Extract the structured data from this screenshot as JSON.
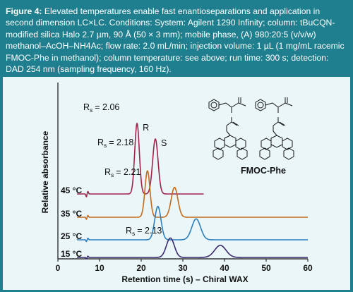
{
  "caption": {
    "figure_label": "Figure 4:",
    "text": " Elevated temperatures enable fast enantioseparations and application in second dimension LC×LC. Conditions: System: Agilent 1290 Infinity; column: tBuCQN-modified silica Halo 2.7 µm, 90 Å (50 × 3 mm); mobile phase, (A) 980:20:5 (v/v/w) methanol–AcOH–NH4Ac; flow rate: 2.0 mL/min; injection volume: 1 µL (1 mg/mL racemic FMOC-Phe in methanol); column temperature: see above; run time: 300 s; detection: DAD 254 nm (sampling frequency, 160 Hz)."
  },
  "molecule_label": "FMOC-Phe",
  "chart_data": {
    "type": "line",
    "xlabel": "Retention time (s) – Chiral WAX",
    "ylabel": "Relative absorbance",
    "xlim": [
      0,
      60
    ],
    "xticks": [
      0,
      10,
      20,
      30,
      40,
      50,
      60
    ],
    "grid": false,
    "series": [
      {
        "name": "45 °C",
        "color": "#a3224a",
        "x_end": 35,
        "rs_label": "R",
        "rs_sub": "s",
        "rs_value": "= 2.06",
        "peaks": [
          {
            "t": 19.0,
            "h": 1.0,
            "w": 0.55,
            "label": "R"
          },
          {
            "t": 23.4,
            "h": 0.78,
            "w": 0.65,
            "label": "S"
          }
        ]
      },
      {
        "name": "35 °C",
        "color": "#c26a1e",
        "x_end": 60,
        "rs_label": "R",
        "rs_sub": "s",
        "rs_value": "= 2.18",
        "peaks": [
          {
            "t": 21.5,
            "h": 0.9,
            "w": 0.6
          },
          {
            "t": 28.0,
            "h": 0.58,
            "w": 0.8
          }
        ]
      },
      {
        "name": "25 °C",
        "color": "#2c7fbe",
        "x_end": 60,
        "rs_label": "R",
        "rs_sub": "s",
        "rs_value": "= 2.21",
        "peaks": [
          {
            "t": 24.0,
            "h": 0.75,
            "w": 0.75
          },
          {
            "t": 33.2,
            "h": 0.47,
            "w": 1.05
          }
        ]
      },
      {
        "name": "15 °C",
        "color": "#3a2a6e",
        "x_end": 60,
        "rs_label": "R",
        "rs_sub": "s",
        "rs_value": "= 2.13",
        "peaks": [
          {
            "t": 27.0,
            "h": 0.53,
            "w": 0.95
          },
          {
            "t": 39.0,
            "h": 0.33,
            "w": 1.35
          }
        ]
      }
    ],
    "injection_marker_t": 7.0
  }
}
